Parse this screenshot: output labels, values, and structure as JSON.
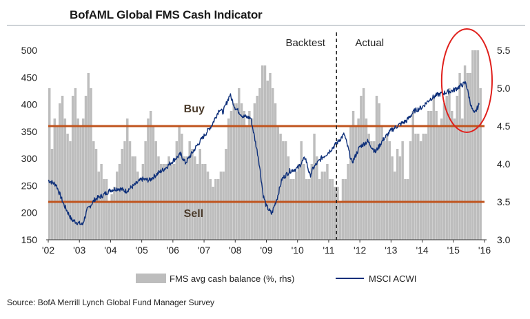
{
  "chart_data": {
    "type": "bar+line",
    "title": "BofAML Global FMS Cash Indicator",
    "source": "Source: BofA Merrill Lynch Global Fund Manager Survey",
    "x_ticks": [
      "'02",
      "'03",
      "'04",
      "'05",
      "'06",
      "'07",
      "'08",
      "'09",
      "'10",
      "'11",
      "'12",
      "'13",
      "'14",
      "'15",
      "'16"
    ],
    "left_axis": {
      "ticks": [
        "500",
        "450",
        "400",
        "350",
        "300",
        "250",
        "200",
        "150"
      ],
      "range": [
        150,
        500
      ]
    },
    "right_axis": {
      "ticks": [
        "5.5",
        "5.0",
        "4.5",
        "4.0",
        "3.5",
        "3.0"
      ],
      "range": [
        3.0,
        5.5
      ]
    },
    "x_range": [
      2002.0,
      2016.0
    ],
    "thresholds": [
      {
        "label": "Buy",
        "value": 4.5
      },
      {
        "label": "Sell",
        "value": 3.5
      }
    ],
    "annotations": {
      "backtest": "Backtest",
      "actual": "Actual",
      "divider_x": 2011.25
    },
    "highlight_circle_x": [
      2015.0,
      2016.0
    ],
    "legend": {
      "bars": "FMS avg cash balance (%, rhs)",
      "line": "MSCI ACWI"
    },
    "colors": {
      "bars": "#bdbdbd",
      "line": "#0d2f7a",
      "threshold": "#c0541e",
      "circle": "#e0201c",
      "divider": "#222222"
    },
    "series": [
      {
        "name": "FMS avg cash balance (%, rhs)",
        "kind": "bar",
        "x": [
          2002.0,
          2002.083,
          2002.167,
          2002.25,
          2002.333,
          2002.417,
          2002.5,
          2002.583,
          2002.667,
          2002.75,
          2002.833,
          2002.917,
          2003.0,
          2003.083,
          2003.167,
          2003.25,
          2003.333,
          2003.417,
          2003.5,
          2003.583,
          2003.667,
          2003.75,
          2003.833,
          2003.917,
          2004.0,
          2004.083,
          2004.167,
          2004.25,
          2004.333,
          2004.417,
          2004.5,
          2004.583,
          2004.667,
          2004.75,
          2004.833,
          2004.917,
          2005.0,
          2005.083,
          2005.167,
          2005.25,
          2005.333,
          2005.417,
          2005.5,
          2005.583,
          2005.667,
          2005.75,
          2005.833,
          2005.917,
          2006.0,
          2006.083,
          2006.167,
          2006.25,
          2006.333,
          2006.417,
          2006.5,
          2006.583,
          2006.667,
          2006.75,
          2006.833,
          2006.917,
          2007.0,
          2007.083,
          2007.167,
          2007.25,
          2007.333,
          2007.417,
          2007.5,
          2007.583,
          2007.667,
          2007.75,
          2007.833,
          2007.917,
          2008.0,
          2008.083,
          2008.167,
          2008.25,
          2008.333,
          2008.417,
          2008.5,
          2008.583,
          2008.667,
          2008.75,
          2008.833,
          2008.917,
          2009.0,
          2009.083,
          2009.167,
          2009.25,
          2009.333,
          2009.417,
          2009.5,
          2009.583,
          2009.667,
          2009.75,
          2009.833,
          2009.917,
          2010.0,
          2010.083,
          2010.167,
          2010.25,
          2010.333,
          2010.417,
          2010.5,
          2010.583,
          2010.667,
          2010.75,
          2010.833,
          2010.917,
          2011.0,
          2011.083,
          2011.167,
          2011.25,
          2011.333,
          2011.417,
          2011.5,
          2011.583,
          2011.667,
          2011.75,
          2011.833,
          2011.917,
          2012.0,
          2012.083,
          2012.167,
          2012.25,
          2012.333,
          2012.417,
          2012.5,
          2012.583,
          2012.667,
          2012.75,
          2012.833,
          2012.917,
          2013.0,
          2013.083,
          2013.167,
          2013.25,
          2013.333,
          2013.417,
          2013.5,
          2013.583,
          2013.667,
          2013.75,
          2013.833,
          2013.917,
          2014.0,
          2014.083,
          2014.167,
          2014.25,
          2014.333,
          2014.417,
          2014.5,
          2014.583,
          2014.667,
          2014.75,
          2014.833,
          2014.917,
          2015.0,
          2015.083,
          2015.167,
          2015.25,
          2015.333,
          2015.417,
          2015.5,
          2015.583,
          2015.667,
          2015.75,
          2015.833
        ],
        "values": [
          5.0,
          4.2,
          4.6,
          4.5,
          4.8,
          4.9,
          4.6,
          4.4,
          4.3,
          4.9,
          5.0,
          4.6,
          4.5,
          4.6,
          4.9,
          5.2,
          5.0,
          4.3,
          4.2,
          3.9,
          4.0,
          3.8,
          3.8,
          3.5,
          3.6,
          3.7,
          3.9,
          4.0,
          4.2,
          4.3,
          4.6,
          4.3,
          4.1,
          4.1,
          3.9,
          3.8,
          4.0,
          4.3,
          4.6,
          4.7,
          4.5,
          4.3,
          4.1,
          4.0,
          4.0,
          4.0,
          4.1,
          4.0,
          4.0,
          4.3,
          4.5,
          4.4,
          4.1,
          4.1,
          4.3,
          4.2,
          4.1,
          4.0,
          4.2,
          4.0,
          4.0,
          3.9,
          3.8,
          3.7,
          3.8,
          3.8,
          3.9,
          3.9,
          4.2,
          4.6,
          4.7,
          4.8,
          4.8,
          5.0,
          4.8,
          4.7,
          4.5,
          4.7,
          4.6,
          4.8,
          4.9,
          5.0,
          5.3,
          5.3,
          5.1,
          5.2,
          5.0,
          4.8,
          4.5,
          4.4,
          4.3,
          4.3,
          4.1,
          3.8,
          3.8,
          3.9,
          4.0,
          4.3,
          4.0,
          3.8,
          3.8,
          4.0,
          4.4,
          4.1,
          3.8,
          3.9,
          3.9,
          4.0,
          3.8,
          3.8,
          3.7,
          3.7,
          3.5,
          3.8,
          3.8,
          4.0,
          4.5,
          4.7,
          4.5,
          4.6,
          4.9,
          5.0,
          4.6,
          4.4,
          4.3,
          4.3,
          4.9,
          4.8,
          4.5,
          4.3,
          4.4,
          4.3,
          4.1,
          3.9,
          4.2,
          4.1,
          4.3,
          3.8,
          3.8,
          4.3,
          4.7,
          4.4,
          4.4,
          4.3,
          4.4,
          4.4,
          4.7,
          4.7,
          4.9,
          4.7,
          4.5,
          4.6,
          4.8,
          4.9,
          5.0,
          4.7,
          4.6,
          4.9,
          5.2,
          4.6,
          5.3,
          5.2,
          5.2,
          5.5,
          5.5,
          5.5,
          5.0
        ]
      },
      {
        "name": "MSCI ACWI",
        "kind": "line",
        "x": [
          2002.0,
          2002.25,
          2002.5,
          2002.75,
          2003.0,
          2003.1,
          2003.25,
          2003.5,
          2003.75,
          2004.0,
          2004.25,
          2004.5,
          2004.75,
          2005.0,
          2005.25,
          2005.5,
          2005.75,
          2006.0,
          2006.25,
          2006.4,
          2006.5,
          2006.75,
          2007.0,
          2007.25,
          2007.5,
          2007.6,
          2007.83,
          2008.0,
          2008.25,
          2008.5,
          2008.75,
          2008.9,
          2009.0,
          2009.17,
          2009.35,
          2009.5,
          2009.75,
          2010.0,
          2010.25,
          2010.4,
          2010.5,
          2010.75,
          2011.0,
          2011.25,
          2011.5,
          2011.75,
          2012.0,
          2012.25,
          2012.5,
          2012.75,
          2013.0,
          2013.25,
          2013.5,
          2013.75,
          2014.0,
          2014.25,
          2014.5,
          2014.75,
          2015.0,
          2015.25,
          2015.4,
          2015.58,
          2015.67,
          2015.83
        ],
        "values": [
          260,
          252,
          215,
          187,
          180,
          178,
          205,
          225,
          232,
          242,
          245,
          240,
          250,
          262,
          260,
          272,
          282,
          296,
          308,
          292,
          300,
          322,
          342,
          362,
          392,
          385,
          418,
          394,
          378,
          375,
          300,
          232,
          212,
          198,
          228,
          262,
          277,
          282,
          302,
          268,
          282,
          300,
          312,
          328,
          345,
          292,
          322,
          332,
          312,
          335,
          352,
          362,
          370,
          388,
          395,
          410,
          418,
          422,
          426,
          435,
          440,
          395,
          382,
          400
        ]
      }
    ]
  }
}
